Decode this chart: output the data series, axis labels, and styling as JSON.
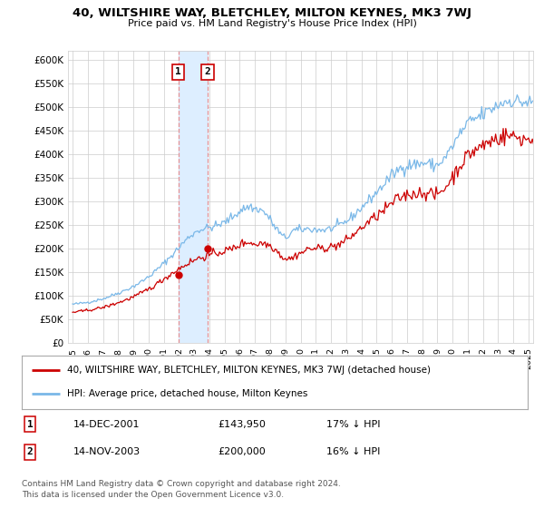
{
  "title": "40, WILTSHIRE WAY, BLETCHLEY, MILTON KEYNES, MK3 7WJ",
  "subtitle": "Price paid vs. HM Land Registry's House Price Index (HPI)",
  "legend_line1": "40, WILTSHIRE WAY, BLETCHLEY, MILTON KEYNES, MK3 7WJ (detached house)",
  "legend_line2": "HPI: Average price, detached house, Milton Keynes",
  "table_rows": [
    {
      "num": "1",
      "date": "14-DEC-2001",
      "price": "£143,950",
      "hpi": "17% ↓ HPI"
    },
    {
      "num": "2",
      "date": "14-NOV-2003",
      "price": "£200,000",
      "hpi": "16% ↓ HPI"
    }
  ],
  "footnote1": "Contains HM Land Registry data © Crown copyright and database right 2024.",
  "footnote2": "This data is licensed under the Open Government Licence v3.0.",
  "ylim": [
    0,
    620000
  ],
  "yticks": [
    0,
    50000,
    100000,
    150000,
    200000,
    250000,
    300000,
    350000,
    400000,
    450000,
    500000,
    550000,
    600000
  ],
  "ytick_labels": [
    "£0",
    "£50K",
    "£100K",
    "£150K",
    "£200K",
    "£250K",
    "£300K",
    "£350K",
    "£400K",
    "£450K",
    "£500K",
    "£550K",
    "£600K"
  ],
  "hpi_color": "#7ab8e8",
  "price_color": "#cc0000",
  "marker1_x": 2001.958,
  "marker1_y": 143950,
  "marker2_x": 2003.875,
  "marker2_y": 200000,
  "shade_color": "#ddeeff",
  "background_color": "#ffffff",
  "grid_color": "#cccccc",
  "xlim_min": 1994.7,
  "xlim_max": 2025.3
}
